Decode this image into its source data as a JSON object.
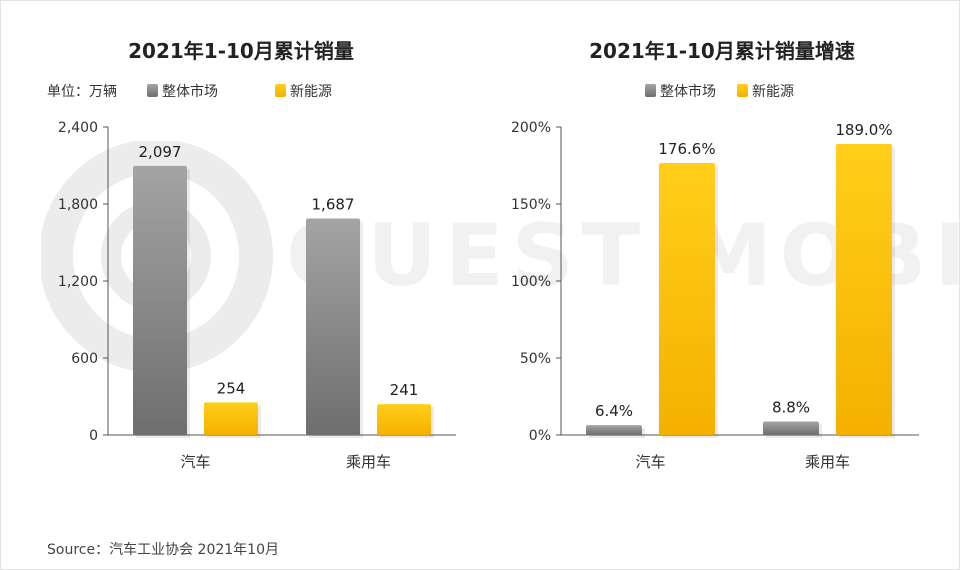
{
  "watermark_text": "QUEST MOBILE",
  "source": "Source：汽车工业协会 2021年10月",
  "colors": {
    "grey_top": "#a4a4a4",
    "grey_bottom": "#6e6e6e",
    "gold_top": "#ffcf1a",
    "gold_bottom": "#f5b000",
    "axis": "#555555",
    "text": "#333333"
  },
  "chart_data": [
    {
      "type": "bar",
      "title": "2021年1-10月累计销量",
      "unit_label": "单位：万辆",
      "categories": [
        "汽车",
        "乘用车"
      ],
      "series": [
        {
          "name": "整体市场",
          "values": [
            2097,
            1687
          ],
          "labels": [
            "2,097",
            "1,687"
          ]
        },
        {
          "name": "新能源",
          "values": [
            254,
            241
          ],
          "labels": [
            "254",
            "241"
          ]
        }
      ],
      "ylim": [
        0,
        2400
      ],
      "yticks": [
        0,
        600,
        1200,
        1800,
        2400
      ],
      "ytick_labels": [
        "0",
        "600",
        "1,200",
        "1,800",
        "2,400"
      ],
      "legend_position": "top-left"
    },
    {
      "type": "bar",
      "title": "2021年1-10月累计销量增速",
      "categories": [
        "汽车",
        "乘用车"
      ],
      "series": [
        {
          "name": "整体市场",
          "values": [
            6.4,
            8.8
          ],
          "labels": [
            "6.4%",
            "8.8%"
          ]
        },
        {
          "name": "新能源",
          "values": [
            176.6,
            189.0
          ],
          "labels": [
            "176.6%",
            "189.0%"
          ]
        }
      ],
      "ylim": [
        0,
        200
      ],
      "yticks": [
        0,
        50,
        100,
        150,
        200
      ],
      "ytick_labels": [
        "0%",
        "50%",
        "100%",
        "150%",
        "200%"
      ],
      "legend_position": "top-center"
    }
  ]
}
